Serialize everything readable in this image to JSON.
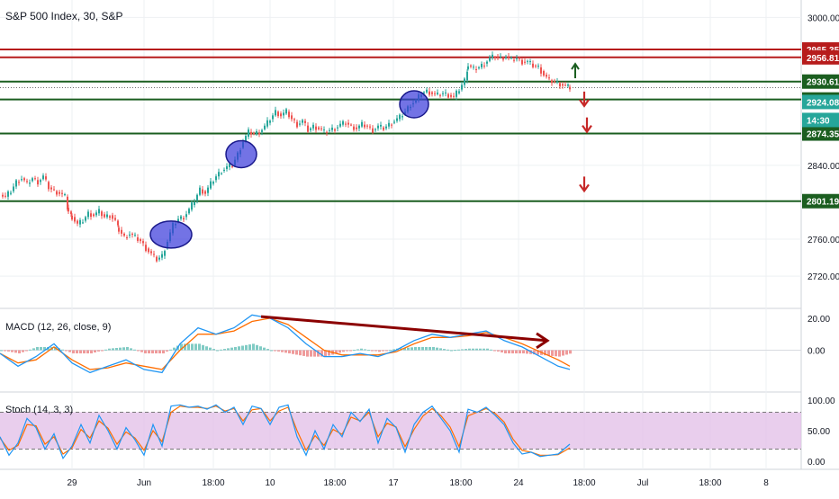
{
  "chart_data": {
    "type": "candlestick",
    "title": "S&P 500 Index, 30, S&P",
    "price_axis": {
      "ylim": [
        2690,
        3015
      ],
      "ticks": [
        3000,
        2840,
        2760,
        2720
      ],
      "tick_labels": [
        "3000.00",
        "2840.00",
        "2760.00",
        "2720.00"
      ]
    },
    "time_axis": {
      "labels": [
        "29",
        "Jun",
        "18:00",
        "10",
        "18:00",
        "17",
        "18:00",
        "24",
        "18:00",
        "Jul",
        "18:00",
        "8"
      ]
    },
    "candles": {
      "close_path": [
        [
          0,
          2808
        ],
        [
          6,
          2806
        ],
        [
          12,
          2812
        ],
        [
          18,
          2822
        ],
        [
          24,
          2826
        ],
        [
          30,
          2820
        ],
        [
          36,
          2826
        ],
        [
          42,
          2822
        ],
        [
          48,
          2828
        ],
        [
          54,
          2816
        ],
        [
          60,
          2812
        ],
        [
          66,
          2810
        ],
        [
          72,
          2806
        ],
        [
          76,
          2790
        ],
        [
          80,
          2784
        ],
        [
          86,
          2776
        ],
        [
          92,
          2780
        ],
        [
          98,
          2788
        ],
        [
          104,
          2786
        ],
        [
          110,
          2790
        ],
        [
          116,
          2784
        ],
        [
          122,
          2786
        ],
        [
          128,
          2780
        ],
        [
          132,
          2770
        ],
        [
          138,
          2762
        ],
        [
          144,
          2766
        ],
        [
          150,
          2762
        ],
        [
          156,
          2758
        ],
        [
          162,
          2750
        ],
        [
          168,
          2744
        ],
        [
          174,
          2738
        ],
        [
          180,
          2742
        ],
        [
          186,
          2758
        ],
        [
          192,
          2775
        ],
        [
          198,
          2782
        ],
        [
          204,
          2784
        ],
        [
          210,
          2792
        ],
        [
          216,
          2802
        ],
        [
          222,
          2814
        ],
        [
          228,
          2810
        ],
        [
          234,
          2820
        ],
        [
          240,
          2828
        ],
        [
          246,
          2834
        ],
        [
          252,
          2838
        ],
        [
          258,
          2840
        ],
        [
          264,
          2852
        ],
        [
          270,
          2866
        ],
        [
          276,
          2876
        ],
        [
          282,
          2874
        ],
        [
          288,
          2876
        ],
        [
          294,
          2882
        ],
        [
          300,
          2890
        ],
        [
          306,
          2898
        ],
        [
          312,
          2894
        ],
        [
          318,
          2898
        ],
        [
          324,
          2890
        ],
        [
          330,
          2884
        ],
        [
          336,
          2888
        ],
        [
          342,
          2878
        ],
        [
          348,
          2882
        ],
        [
          354,
          2880
        ],
        [
          360,
          2876
        ],
        [
          366,
          2878
        ],
        [
          372,
          2880
        ],
        [
          378,
          2884
        ],
        [
          384,
          2886
        ],
        [
          390,
          2882
        ],
        [
          396,
          2880
        ],
        [
          402,
          2884
        ],
        [
          408,
          2882
        ],
        [
          414,
          2878
        ],
        [
          420,
          2882
        ],
        [
          426,
          2880
        ],
        [
          432,
          2884
        ],
        [
          438,
          2888
        ],
        [
          444,
          2892
        ],
        [
          450,
          2898
        ],
        [
          456,
          2906
        ],
        [
          462,
          2910
        ],
        [
          468,
          2918
        ],
        [
          474,
          2920
        ],
        [
          480,
          2918
        ],
        [
          486,
          2916
        ],
        [
          492,
          2918
        ],
        [
          498,
          2916
        ],
        [
          504,
          2914
        ],
        [
          510,
          2922
        ],
        [
          516,
          2932
        ],
        [
          520,
          2948
        ],
        [
          526,
          2944
        ],
        [
          532,
          2946
        ],
        [
          538,
          2950
        ],
        [
          544,
          2956
        ],
        [
          550,
          2958
        ],
        [
          556,
          2956
        ],
        [
          562,
          2958
        ],
        [
          568,
          2954
        ],
        [
          574,
          2956
        ],
        [
          580,
          2952
        ],
        [
          586,
          2952
        ],
        [
          592,
          2948
        ],
        [
          598,
          2946
        ],
        [
          604,
          2938
        ],
        [
          610,
          2932
        ],
        [
          616,
          2930
        ],
        [
          622,
          2928
        ],
        [
          628,
          2926
        ],
        [
          633,
          2924
        ]
      ]
    },
    "horizontal_levels": [
      {
        "price": 2965.35,
        "label": "2965.35",
        "color": "#b71c1c"
      },
      {
        "price": 2956.81,
        "label": "2956.81",
        "color": "#b71c1c"
      },
      {
        "price": 2930.61,
        "label": "2930.61",
        "color": "#1b5e20"
      },
      {
        "price": 2911.25,
        "label": "2911.25",
        "color": "#1b5e20"
      },
      {
        "price": 2874.35,
        "label": "2874.35",
        "color": "#1b5e20"
      },
      {
        "price": 2801.19,
        "label": "2801.19",
        "color": "#1b5e20"
      }
    ],
    "current_price": {
      "price": 2924.08,
      "label": "2924.08",
      "time_label": "14:30",
      "color": "#26a69a"
    },
    "macd": {
      "label": "MACD (12, 26, close, 9)",
      "ylim": [
        -25,
        25
      ],
      "tick_labels": [
        "20.00",
        "0.00"
      ],
      "macd_color": "#2196f3",
      "signal_color": "#ff6d00",
      "macd_line": [
        [
          0,
          -2
        ],
        [
          20,
          -10
        ],
        [
          40,
          -4
        ],
        [
          60,
          4
        ],
        [
          80,
          -8
        ],
        [
          100,
          -14
        ],
        [
          120,
          -10
        ],
        [
          140,
          -6
        ],
        [
          160,
          -12
        ],
        [
          180,
          -14
        ],
        [
          200,
          4
        ],
        [
          220,
          14
        ],
        [
          240,
          10
        ],
        [
          260,
          14
        ],
        [
          280,
          22
        ],
        [
          300,
          20
        ],
        [
          320,
          14
        ],
        [
          340,
          4
        ],
        [
          360,
          -4
        ],
        [
          380,
          -4
        ],
        [
          400,
          -2
        ],
        [
          420,
          -4
        ],
        [
          440,
          0
        ],
        [
          460,
          6
        ],
        [
          480,
          10
        ],
        [
          500,
          8
        ],
        [
          520,
          10
        ],
        [
          540,
          12
        ],
        [
          560,
          6
        ],
        [
          580,
          2
        ],
        [
          600,
          -4
        ],
        [
          620,
          -10
        ],
        [
          633,
          -12
        ]
      ],
      "signal_line": [
        [
          0,
          -2
        ],
        [
          20,
          -8
        ],
        [
          40,
          -6
        ],
        [
          60,
          2
        ],
        [
          80,
          -6
        ],
        [
          100,
          -12
        ],
        [
          120,
          -11
        ],
        [
          140,
          -8
        ],
        [
          160,
          -10
        ],
        [
          180,
          -12
        ],
        [
          200,
          0
        ],
        [
          220,
          10
        ],
        [
          240,
          10
        ],
        [
          260,
          12
        ],
        [
          280,
          18
        ],
        [
          300,
          20
        ],
        [
          320,
          16
        ],
        [
          340,
          8
        ],
        [
          360,
          0
        ],
        [
          380,
          -3
        ],
        [
          400,
          -3
        ],
        [
          420,
          -3
        ],
        [
          440,
          -1
        ],
        [
          460,
          4
        ],
        [
          480,
          8
        ],
        [
          500,
          8
        ],
        [
          520,
          9
        ],
        [
          540,
          11
        ],
        [
          560,
          8
        ],
        [
          580,
          4
        ],
        [
          600,
          -1
        ],
        [
          620,
          -6
        ],
        [
          633,
          -10
        ]
      ],
      "divergence_arrow": {
        "start": [
          290,
          21
        ],
        "end": [
          608,
          6
        ],
        "color": "#8b0000"
      }
    },
    "stoch": {
      "label": "Stoch (14, 3, 3)",
      "ylim": [
        -10,
        110
      ],
      "tick_labels": [
        "100.00",
        "50.00",
        "0.00"
      ],
      "upper_band": 80,
      "lower_band": 20,
      "band_color": "#e1bee7",
      "k_color": "#2196f3",
      "d_color": "#ff6d00",
      "k_line": [
        [
          0,
          40
        ],
        [
          10,
          10
        ],
        [
          20,
          30
        ],
        [
          30,
          70
        ],
        [
          40,
          55
        ],
        [
          50,
          20
        ],
        [
          60,
          45
        ],
        [
          70,
          5
        ],
        [
          80,
          25
        ],
        [
          90,
          60
        ],
        [
          100,
          30
        ],
        [
          110,
          75
        ],
        [
          120,
          50
        ],
        [
          130,
          20
        ],
        [
          140,
          55
        ],
        [
          150,
          35
        ],
        [
          160,
          10
        ],
        [
          170,
          60
        ],
        [
          180,
          25
        ],
        [
          190,
          90
        ],
        [
          200,
          92
        ],
        [
          210,
          88
        ],
        [
          220,
          90
        ],
        [
          230,
          85
        ],
        [
          240,
          92
        ],
        [
          250,
          80
        ],
        [
          260,
          88
        ],
        [
          270,
          60
        ],
        [
          280,
          90
        ],
        [
          290,
          86
        ],
        [
          300,
          60
        ],
        [
          310,
          88
        ],
        [
          320,
          92
        ],
        [
          330,
          40
        ],
        [
          340,
          10
        ],
        [
          350,
          50
        ],
        [
          360,
          20
        ],
        [
          370,
          60
        ],
        [
          380,
          40
        ],
        [
          390,
          80
        ],
        [
          400,
          65
        ],
        [
          410,
          85
        ],
        [
          420,
          30
        ],
        [
          430,
          70
        ],
        [
          440,
          55
        ],
        [
          450,
          15
        ],
        [
          460,
          60
        ],
        [
          470,
          80
        ],
        [
          480,
          90
        ],
        [
          490,
          70
        ],
        [
          500,
          50
        ],
        [
          510,
          15
        ],
        [
          520,
          85
        ],
        [
          530,
          80
        ],
        [
          540,
          88
        ],
        [
          550,
          75
        ],
        [
          560,
          60
        ],
        [
          570,
          30
        ],
        [
          580,
          12
        ],
        [
          590,
          15
        ],
        [
          600,
          8
        ],
        [
          610,
          10
        ],
        [
          620,
          12
        ],
        [
          633,
          28
        ]
      ],
      "d_line": [
        [
          0,
          38
        ],
        [
          10,
          18
        ],
        [
          20,
          26
        ],
        [
          30,
          60
        ],
        [
          40,
          58
        ],
        [
          50,
          28
        ],
        [
          60,
          40
        ],
        [
          70,
          12
        ],
        [
          80,
          22
        ],
        [
          90,
          52
        ],
        [
          100,
          38
        ],
        [
          110,
          66
        ],
        [
          120,
          54
        ],
        [
          130,
          28
        ],
        [
          140,
          48
        ],
        [
          150,
          38
        ],
        [
          160,
          18
        ],
        [
          170,
          50
        ],
        [
          180,
          32
        ],
        [
          190,
          80
        ],
        [
          200,
          90
        ],
        [
          210,
          88
        ],
        [
          220,
          88
        ],
        [
          230,
          86
        ],
        [
          240,
          90
        ],
        [
          250,
          82
        ],
        [
          260,
          86
        ],
        [
          270,
          66
        ],
        [
          280,
          84
        ],
        [
          290,
          86
        ],
        [
          300,
          66
        ],
        [
          310,
          82
        ],
        [
          320,
          88
        ],
        [
          330,
          50
        ],
        [
          340,
          18
        ],
        [
          350,
          42
        ],
        [
          360,
          26
        ],
        [
          370,
          52
        ],
        [
          380,
          44
        ],
        [
          390,
          72
        ],
        [
          400,
          66
        ],
        [
          410,
          80
        ],
        [
          420,
          40
        ],
        [
          430,
          62
        ],
        [
          440,
          56
        ],
        [
          450,
          24
        ],
        [
          460,
          52
        ],
        [
          470,
          74
        ],
        [
          480,
          86
        ],
        [
          490,
          74
        ],
        [
          500,
          56
        ],
        [
          510,
          24
        ],
        [
          520,
          74
        ],
        [
          530,
          80
        ],
        [
          540,
          86
        ],
        [
          550,
          78
        ],
        [
          560,
          64
        ],
        [
          570,
          36
        ],
        [
          580,
          18
        ],
        [
          590,
          15
        ],
        [
          600,
          10
        ],
        [
          610,
          10
        ],
        [
          620,
          11
        ],
        [
          633,
          22
        ]
      ]
    },
    "annotations": {
      "ellipses": [
        {
          "x": 190,
          "price": 2765
        },
        {
          "x": 268,
          "price": 2852
        },
        {
          "x": 460,
          "price": 2906
        }
      ],
      "arrows": [
        {
          "x": 639,
          "price": 2942,
          "direction": "up",
          "color": "#1b5e20"
        },
        {
          "x": 649,
          "price": 2912,
          "direction": "down",
          "color": "#c62828"
        },
        {
          "x": 652,
          "price": 2884,
          "direction": "down",
          "color": "#c62828"
        },
        {
          "x": 649,
          "price": 2820,
          "direction": "down",
          "color": "#c62828"
        }
      ]
    },
    "colors": {
      "up_candle": "#26a69a",
      "down_candle": "#ef5350",
      "grid": "#eef0f3",
      "axis_text": "#131722",
      "ellipse_fill": "#3d3ddb",
      "ellipse_stroke": "#1a1a8c"
    }
  }
}
